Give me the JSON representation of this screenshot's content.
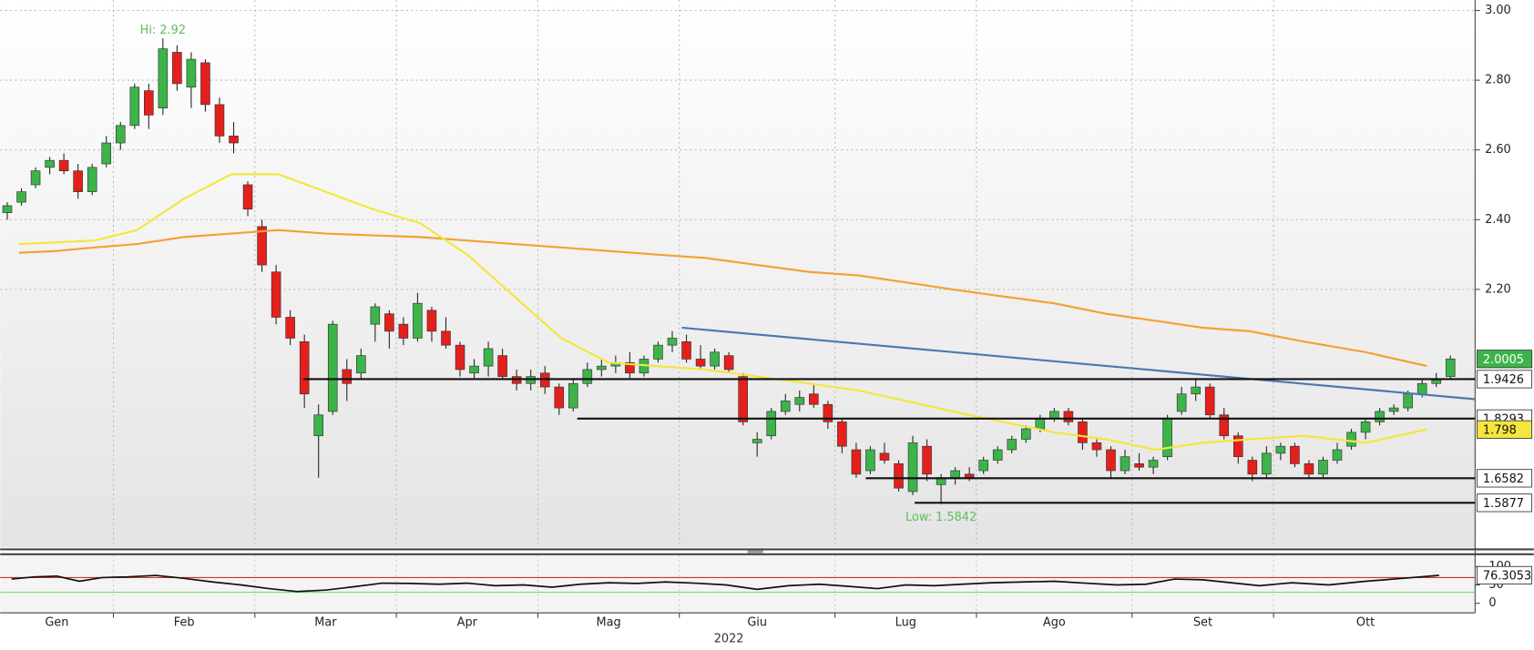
{
  "chart_data": {
    "type": "candlestick",
    "year": "2022",
    "months": [
      {
        "label": "Gen",
        "open": [
          2.42,
          2.45,
          2.5,
          2.55,
          2.57,
          2.54,
          2.48,
          2.56
        ],
        "high": [
          2.45,
          2.49,
          2.55,
          2.58,
          2.59,
          2.56,
          2.56,
          2.64
        ],
        "low": [
          2.4,
          2.44,
          2.49,
          2.53,
          2.53,
          2.46,
          2.47,
          2.55
        ],
        "close": [
          2.44,
          2.48,
          2.54,
          2.57,
          2.54,
          2.48,
          2.55,
          2.62
        ],
        "ma50": [
          2.33,
          2.335,
          2.34
        ],
        "ma200": [
          2.305,
          2.31,
          2.32
        ],
        "rsi": [
          66,
          72,
          74,
          60,
          70
        ]
      },
      {
        "label": "Feb",
        "open": [
          2.62,
          2.67,
          2.77,
          2.72,
          2.88,
          2.78,
          2.85,
          2.73,
          2.64,
          2.5
        ],
        "high": [
          2.68,
          2.79,
          2.79,
          2.92,
          2.9,
          2.88,
          2.86,
          2.75,
          2.68,
          2.51
        ],
        "low": [
          2.6,
          2.66,
          2.66,
          2.7,
          2.77,
          2.72,
          2.71,
          2.62,
          2.59,
          2.41
        ],
        "close": [
          2.67,
          2.78,
          2.7,
          2.89,
          2.79,
          2.86,
          2.73,
          2.64,
          2.62,
          2.43
        ],
        "ma50": [
          2.37,
          2.46,
          2.53
        ],
        "ma200": [
          2.33,
          2.35,
          2.36
        ],
        "rsi": [
          72,
          76,
          68,
          58,
          50
        ]
      },
      {
        "label": "Mar",
        "open": [
          2.38,
          2.25,
          2.12,
          2.05,
          1.78,
          1.85,
          1.97,
          1.96,
          2.1,
          2.13
        ],
        "high": [
          2.4,
          2.27,
          2.14,
          2.07,
          1.87,
          2.11,
          2.0,
          2.03,
          2.16,
          2.14
        ],
        "low": [
          2.25,
          2.1,
          2.04,
          1.86,
          1.66,
          1.84,
          1.88,
          1.94,
          2.05,
          2.03
        ],
        "close": [
          2.27,
          2.12,
          2.06,
          1.9,
          1.84,
          2.1,
          1.93,
          2.01,
          2.15,
          2.08
        ],
        "ma50": [
          2.53,
          2.48,
          2.43
        ],
        "ma200": [
          2.37,
          2.36,
          2.355
        ],
        "rsi": [
          40,
          32,
          36,
          45,
          55
        ]
      },
      {
        "label": "Apr",
        "open": [
          2.1,
          2.06,
          2.14,
          2.08,
          2.04,
          1.96,
          1.98,
          2.01,
          1.95,
          1.93
        ],
        "high": [
          2.12,
          2.19,
          2.15,
          2.12,
          2.05,
          2.0,
          2.05,
          2.03,
          1.97,
          1.97
        ],
        "low": [
          2.04,
          2.05,
          2.05,
          2.03,
          1.95,
          1.94,
          1.95,
          1.94,
          1.91,
          1.91
        ],
        "close": [
          2.06,
          2.16,
          2.08,
          2.04,
          1.97,
          1.98,
          2.03,
          1.95,
          1.93,
          1.95
        ],
        "ma50": [
          2.39,
          2.3,
          2.18
        ],
        "ma200": [
          2.35,
          2.34,
          2.33
        ],
        "rsi": [
          54,
          52,
          55,
          48,
          50
        ]
      },
      {
        "label": "Mag",
        "open": [
          1.96,
          1.92,
          1.86,
          1.93,
          1.97,
          1.98,
          1.99,
          1.96,
          2.0,
          2.04
        ],
        "high": [
          1.98,
          1.93,
          1.94,
          1.99,
          2.0,
          2.01,
          2.02,
          2.01,
          2.05,
          2.08
        ],
        "low": [
          1.9,
          1.84,
          1.85,
          1.92,
          1.95,
          1.96,
          1.94,
          1.95,
          1.99,
          2.02
        ],
        "close": [
          1.92,
          1.86,
          1.93,
          1.97,
          1.98,
          1.99,
          1.96,
          2.0,
          2.04,
          2.06
        ],
        "ma50": [
          2.06,
          1.99,
          1.98
        ],
        "ma200": [
          2.32,
          2.31,
          2.3
        ],
        "rsi": [
          44,
          52,
          56,
          54,
          58
        ]
      },
      {
        "label": "Giu",
        "open": [
          2.05,
          2.0,
          1.98,
          2.01,
          1.95,
          1.76,
          1.78,
          1.85,
          1.87,
          1.9,
          1.87
        ],
        "high": [
          2.07,
          2.04,
          2.03,
          2.02,
          1.96,
          1.79,
          1.86,
          1.9,
          1.91,
          1.93,
          1.88
        ],
        "low": [
          1.99,
          1.97,
          1.97,
          1.96,
          1.81,
          1.72,
          1.77,
          1.84,
          1.85,
          1.86,
          1.8
        ],
        "close": [
          2.0,
          1.98,
          2.02,
          1.97,
          1.82,
          1.77,
          1.85,
          1.88,
          1.89,
          1.87,
          1.82
        ],
        "ma50": [
          1.97,
          1.95,
          1.93
        ],
        "ma200": [
          2.29,
          2.27,
          2.25
        ],
        "rsi": [
          55,
          50,
          38,
          48,
          52
        ]
      },
      {
        "label": "Lug",
        "open": [
          1.82,
          1.74,
          1.68,
          1.73,
          1.7,
          1.62,
          1.75,
          1.64,
          1.66,
          1.67
        ],
        "high": [
          1.83,
          1.76,
          1.75,
          1.76,
          1.71,
          1.78,
          1.77,
          1.67,
          1.69,
          1.69
        ],
        "low": [
          1.73,
          1.66,
          1.67,
          1.7,
          1.62,
          1.61,
          1.65,
          1.5842,
          1.64,
          1.65
        ],
        "close": [
          1.75,
          1.67,
          1.74,
          1.71,
          1.63,
          1.76,
          1.67,
          1.66,
          1.68,
          1.66
        ],
        "ma50": [
          1.91,
          1.88,
          1.85
        ],
        "ma200": [
          2.24,
          2.22,
          2.2
        ],
        "rsi": [
          46,
          40,
          50,
          48,
          52
        ]
      },
      {
        "label": "Ago",
        "open": [
          1.68,
          1.71,
          1.74,
          1.77,
          1.8,
          1.83,
          1.85,
          1.82,
          1.76,
          1.74,
          1.68
        ],
        "high": [
          1.72,
          1.75,
          1.78,
          1.81,
          1.84,
          1.86,
          1.86,
          1.83,
          1.77,
          1.75,
          1.74
        ],
        "low": [
          1.67,
          1.7,
          1.73,
          1.76,
          1.79,
          1.82,
          1.81,
          1.74,
          1.72,
          1.66,
          1.67
        ],
        "close": [
          1.71,
          1.74,
          1.77,
          1.8,
          1.83,
          1.85,
          1.82,
          1.76,
          1.74,
          1.68,
          1.72
        ],
        "ma50": [
          1.82,
          1.79,
          1.77
        ],
        "ma200": [
          2.18,
          2.16,
          2.13
        ],
        "rsi": [
          56,
          58,
          60,
          55,
          50
        ]
      },
      {
        "label": "Set",
        "open": [
          1.7,
          1.69,
          1.72,
          1.85,
          1.9,
          1.92,
          1.84,
          1.78,
          1.71,
          1.67
        ],
        "high": [
          1.73,
          1.72,
          1.84,
          1.92,
          1.94,
          1.93,
          1.86,
          1.79,
          1.72,
          1.75
        ],
        "low": [
          1.68,
          1.67,
          1.71,
          1.84,
          1.88,
          1.83,
          1.77,
          1.7,
          1.65,
          1.66
        ],
        "close": [
          1.69,
          1.71,
          1.83,
          1.9,
          1.92,
          1.84,
          1.78,
          1.72,
          1.67,
          1.73
        ],
        "ma50": [
          1.74,
          1.76,
          1.77
        ],
        "ma200": [
          2.11,
          2.09,
          2.08
        ],
        "rsi": [
          52,
          66,
          64,
          56,
          48
        ]
      },
      {
        "label": "Ott",
        "open": [
          1.73,
          1.75,
          1.7,
          1.67,
          1.71,
          1.75,
          1.79,
          1.82,
          1.85,
          1.86,
          1.9,
          1.93,
          1.95
        ],
        "high": [
          1.76,
          1.76,
          1.71,
          1.72,
          1.76,
          1.8,
          1.83,
          1.86,
          1.87,
          1.91,
          1.94,
          1.96,
          2.01
        ],
        "low": [
          1.71,
          1.69,
          1.66,
          1.66,
          1.7,
          1.74,
          1.77,
          1.81,
          1.84,
          1.85,
          1.89,
          1.92,
          1.94
        ],
        "close": [
          1.75,
          1.7,
          1.67,
          1.71,
          1.74,
          1.79,
          1.82,
          1.85,
          1.86,
          1.9,
          1.93,
          1.94,
          2.0005
        ],
        "ma50": [
          1.78,
          1.76,
          1.798
        ],
        "ma200": [
          2.05,
          2.02,
          1.98
        ],
        "rsi": [
          56,
          50,
          60,
          68,
          76.3053
        ]
      }
    ],
    "ylim": [
      1.46,
      3.03
    ],
    "yticks": [
      {
        "value": 2.2,
        "label": "2.20"
      },
      {
        "value": 2.4,
        "label": "2.40"
      },
      {
        "value": 2.6,
        "label": "2.60"
      },
      {
        "value": 2.8,
        "label": "2.80"
      },
      {
        "value": 3,
        "label": "3.00"
      }
    ],
    "grid": true,
    "up_color": "#3cb44a",
    "down_color": "#e3201c",
    "ma50_color": "#f4e63c",
    "ma200_color": "#f5a031",
    "levels": [
      {
        "value": 1.9426
      },
      {
        "value": 1.8293
      },
      {
        "value": 1.6582
      },
      {
        "value": 1.5877
      }
    ],
    "trendline": [
      2.09,
      1.885
    ],
    "trend_color": "#4a78b0",
    "annotations": [
      {
        "text": "Hi: 2.92",
        "color": "#5cbf5c"
      },
      {
        "text": "Low: 1.5842",
        "color": "#5cbf5c"
      }
    ],
    "rsi_ylim": [
      -26,
      131
    ],
    "rsi_yticks": [
      0,
      50,
      100
    ],
    "rsi_levels": [
      {
        "value": 70,
        "color": "#c0392b"
      },
      {
        "value": 30,
        "color": "#6ad36a"
      }
    ]
  }
}
